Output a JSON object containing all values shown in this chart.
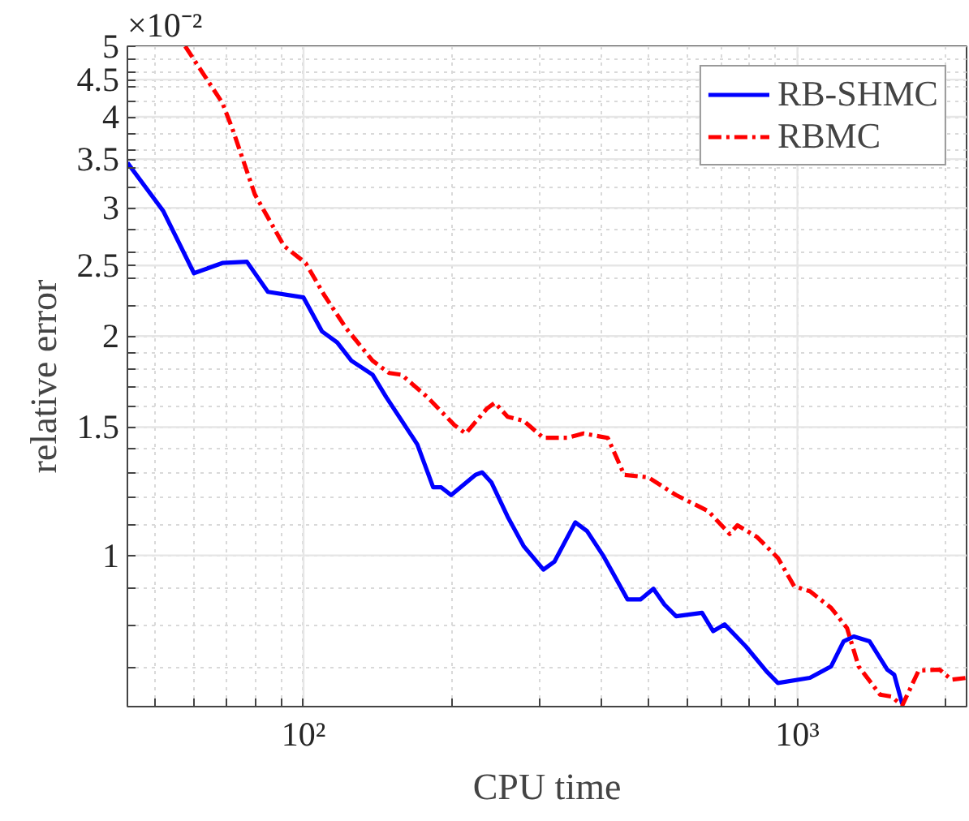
{
  "chart_data": {
    "type": "line",
    "xlabel": "CPU time",
    "ylabel": "relative error",
    "log": "xy",
    "grid": true,
    "legend": "top right",
    "annotations": [
      "×10⁻²"
    ],
    "xlim": [
      44,
      2200
    ],
    "ylim": [
      0.62,
      5
    ],
    "xticks": [
      {
        "value": 50,
        "label": null
      },
      {
        "value": 60,
        "label": null
      },
      {
        "value": 70,
        "label": null
      },
      {
        "value": 80,
        "label": null
      },
      {
        "value": 90,
        "label": null
      },
      {
        "value": 100,
        "label": "10²"
      },
      {
        "value": 200,
        "label": null
      },
      {
        "value": 300,
        "label": null
      },
      {
        "value": 400,
        "label": null
      },
      {
        "value": 500,
        "label": null
      },
      {
        "value": 600,
        "label": null
      },
      {
        "value": 700,
        "label": null
      },
      {
        "value": 800,
        "label": null
      },
      {
        "value": 900,
        "label": null
      },
      {
        "value": 1000,
        "label": "10³"
      },
      {
        "value": 2000,
        "label": null
      }
    ],
    "yticks": [
      {
        "value": 0.7,
        "label": null
      },
      {
        "value": 0.8,
        "label": null
      },
      {
        "value": 0.9,
        "label": null
      },
      1,
      {
        "value": 1.1,
        "label": null
      },
      {
        "value": 1.2,
        "label": null
      },
      {
        "value": 1.3,
        "label": null
      },
      {
        "value": 1.4,
        "label": null
      },
      1.5,
      {
        "value": 1.6,
        "label": null
      },
      {
        "value": 1.7,
        "label": null
      },
      {
        "value": 1.8,
        "label": null
      },
      {
        "value": 1.9,
        "label": null
      },
      2,
      {
        "value": 2.2,
        "label": null
      },
      {
        "value": 2.4,
        "label": null
      },
      2.5,
      {
        "value": 2.6,
        "label": null
      },
      {
        "value": 2.8,
        "label": null
      },
      3,
      {
        "value": 3.2,
        "label": null
      },
      {
        "value": 3.4,
        "label": null
      },
      3.5,
      {
        "value": 3.6,
        "label": null
      },
      {
        "value": 3.8,
        "label": null
      },
      4,
      {
        "value": 4.2,
        "label": null
      },
      {
        "value": 4.4,
        "label": null
      },
      4.5,
      {
        "value": 4.6,
        "label": null
      },
      {
        "value": 4.8,
        "label": null
      },
      5
    ],
    "series": [
      {
        "name": "RB-SHMC",
        "color": "#0000ff",
        "line_style": "solid",
        "x": [
          44,
          52,
          60,
          68.5,
          76.8,
          84.7,
          100,
          109,
          117,
          125,
          138,
          147,
          170,
          183,
          190,
          199,
          223,
          230,
          240,
          259,
          279,
          306,
          322,
          355,
          375,
          404,
          453,
          481,
          511,
          538,
          568,
          641,
          675,
          712,
          786,
          866,
          913,
          1060,
          1170,
          1240,
          1300,
          1400,
          1520,
          1570,
          1630
        ],
        "values": [
          3.46,
          2.97,
          2.44,
          2.52,
          2.53,
          2.3,
          2.26,
          2.03,
          1.96,
          1.85,
          1.77,
          1.65,
          1.42,
          1.24,
          1.24,
          1.21,
          1.29,
          1.3,
          1.26,
          1.13,
          1.03,
          0.956,
          0.98,
          1.11,
          1.08,
          1.0,
          0.87,
          0.87,
          0.9,
          0.856,
          0.825,
          0.834,
          0.787,
          0.804,
          0.75,
          0.693,
          0.668,
          0.679,
          0.704,
          0.762,
          0.774,
          0.762,
          0.697,
          0.686,
          0.625
        ]
      },
      {
        "name": "RBMC",
        "color": "#ff0000",
        "line_style": "dashed",
        "x": [
          57.6,
          68.5,
          71.7,
          79.7,
          91.3,
          101,
          110,
          122,
          138,
          149,
          158,
          178,
          202,
          213,
          235,
          244,
          259,
          279,
          306,
          342,
          369,
          413,
          446,
          499,
          568,
          660,
          729,
          756,
          828,
          913,
          985,
          1060,
          1170,
          1260,
          1330,
          1470,
          1550,
          1630,
          1760,
          1940,
          2050,
          2200
        ],
        "values": [
          5,
          4.18,
          3.86,
          3.13,
          2.66,
          2.52,
          2.28,
          2.05,
          1.85,
          1.78,
          1.77,
          1.65,
          1.51,
          1.47,
          1.59,
          1.62,
          1.55,
          1.53,
          1.45,
          1.45,
          1.47,
          1.45,
          1.29,
          1.28,
          1.21,
          1.15,
          1.07,
          1.1,
          1.06,
          0.992,
          0.907,
          0.893,
          0.847,
          0.795,
          0.704,
          0.644,
          0.64,
          0.622,
          0.695,
          0.697,
          0.675,
          0.679
        ]
      }
    ]
  }
}
